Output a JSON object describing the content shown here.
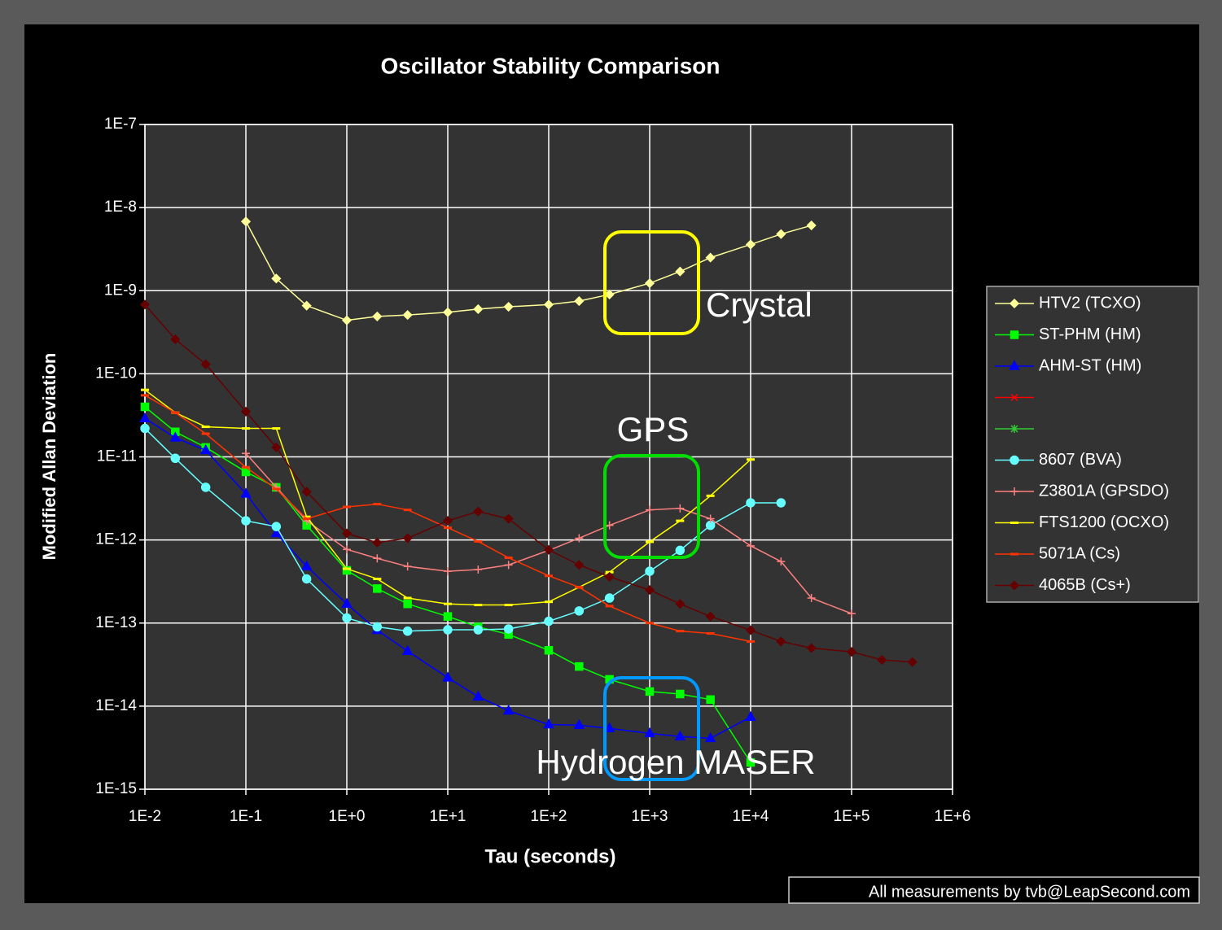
{
  "chart_data": {
    "type": "line",
    "title": "Oscillator Stability Comparison",
    "x_label": "Tau (seconds)",
    "y_label": "Modified Allan Deviation",
    "footer": "All measurements by tvb@LeapSecond.com",
    "annotations": [
      "Crystal",
      "GPS",
      "Hydrogen MASER"
    ],
    "xscale": "log",
    "yscale": "log",
    "grid": true,
    "legend": "right",
    "xlim": [
      0.01,
      1000000
    ],
    "ylim": [
      1e-15,
      1e-07
    ],
    "xticks": [
      {
        "value": 0.01,
        "label": "1E-2"
      },
      {
        "value": 0.1,
        "label": "1E-1"
      },
      {
        "value": 1,
        "label": "1E+0"
      },
      {
        "value": 10,
        "label": "1E+1"
      },
      {
        "value": 100,
        "label": "1E+2"
      },
      {
        "value": 1000,
        "label": "1E+3"
      },
      {
        "value": 10000,
        "label": "1E+4"
      },
      {
        "value": 100000,
        "label": "1E+5"
      },
      {
        "value": 1000000,
        "label": "1E+6"
      }
    ],
    "yticks": [
      {
        "value": 1e-15,
        "label": "1E-15"
      },
      {
        "value": 1e-14,
        "label": "1E-14"
      },
      {
        "value": 1e-13,
        "label": "1E-13"
      },
      {
        "value": 1e-12,
        "label": "1E-12"
      },
      {
        "value": 1e-11,
        "label": "1E-11"
      },
      {
        "value": 1e-10,
        "label": "1E-10"
      },
      {
        "value": 1e-09,
        "label": "1E-9"
      },
      {
        "value": 1e-08,
        "label": "1E-8"
      },
      {
        "value": 1e-07,
        "label": "1E-7"
      }
    ],
    "x": [
      0.01,
      0.02,
      0.04,
      0.1,
      0.2,
      0.4,
      1,
      2,
      4,
      10,
      20,
      40,
      100,
      200,
      400,
      1000,
      2000,
      4000,
      10000,
      20000,
      40000,
      100000,
      200000,
      400000
    ],
    "series": [
      {
        "name": "HTV2 (TCXO)",
        "color": "#ffff99",
        "marker": "diamond",
        "values": [
          null,
          null,
          null,
          6.8e-09,
          1.4e-09,
          6.6e-10,
          4.4e-10,
          4.9e-10,
          5.1e-10,
          5.5e-10,
          6e-10,
          6.4e-10,
          6.8e-10,
          7.5e-10,
          9e-10,
          1.23e-09,
          1.7e-09,
          2.5e-09,
          3.6e-09,
          4.8e-09,
          6.1e-09,
          null,
          null,
          null
        ]
      },
      {
        "name": "ST-PHM (HM)",
        "color": "#00ff00",
        "marker": "square",
        "values": [
          4e-11,
          2e-11,
          1.3e-11,
          6.6e-12,
          4.3e-12,
          1.5e-12,
          4.3e-13,
          2.6e-13,
          1.7e-13,
          1.2e-13,
          9e-14,
          7.3e-14,
          4.7e-14,
          3e-14,
          2.1e-14,
          1.5e-14,
          1.4e-14,
          1.2e-14,
          2.1e-15,
          null,
          null,
          null,
          null,
          null
        ]
      },
      {
        "name": "AHM-ST (HM)",
        "color": "#0000ff",
        "marker": "triangle",
        "values": [
          2.9e-11,
          1.7e-11,
          1.2e-11,
          3.6e-12,
          1.2e-12,
          4.8e-13,
          1.7e-13,
          8.2e-14,
          4.6e-14,
          2.2e-14,
          1.3e-14,
          8.8e-15,
          6e-15,
          5.9e-15,
          5.4e-15,
          4.7e-15,
          4.3e-15,
          4.1e-15,
          7.4e-15,
          null,
          null,
          null,
          null,
          null
        ]
      },
      {
        "name": null,
        "color": "#ff0000",
        "marker": "x",
        "values": [
          null,
          null,
          null,
          null,
          null,
          null,
          null,
          null,
          null,
          null,
          null,
          null,
          null,
          null,
          null,
          null,
          null,
          null,
          null,
          null,
          null,
          null,
          null,
          null
        ]
      },
      {
        "name": null,
        "color": "#33cc33",
        "marker": "star",
        "values": [
          null,
          null,
          null,
          null,
          null,
          null,
          null,
          null,
          null,
          null,
          null,
          null,
          null,
          null,
          null,
          null,
          null,
          null,
          null,
          null,
          null,
          null,
          null,
          null
        ]
      },
      {
        "name": "8607 (BVA)",
        "color": "#66ffff",
        "marker": "circle",
        "values": [
          2.2e-11,
          9.6e-12,
          4.3e-12,
          1.7e-12,
          1.45e-12,
          3.4e-13,
          1.15e-13,
          9e-14,
          8e-14,
          8.3e-14,
          8.3e-14,
          8.5e-14,
          1.05e-13,
          1.4e-13,
          2e-13,
          4.2e-13,
          7.5e-13,
          1.5e-12,
          2.8e-12,
          2.8e-12,
          null,
          null,
          null,
          null
        ]
      },
      {
        "name": "Z3801A (GPSDO)",
        "color": "#ff8080",
        "marker": "plus",
        "values": [
          null,
          null,
          null,
          1.1e-11,
          4.3e-12,
          1.7e-12,
          7.7e-13,
          6e-13,
          4.8e-13,
          4.2e-13,
          4.4e-13,
          5e-13,
          7.5e-13,
          1.05e-12,
          1.5e-12,
          2.3e-12,
          2.4e-12,
          1.8e-12,
          8.5e-13,
          5.5e-13,
          2e-13,
          1.3e-13,
          null,
          null
        ]
      },
      {
        "name": "FTS1200 (OCXO)",
        "color": "#ffff00",
        "marker": "dash",
        "values": [
          6.4e-11,
          3.4e-11,
          2.3e-11,
          2.2e-11,
          2.2e-11,
          1.9e-12,
          4.5e-13,
          3.4e-13,
          2e-13,
          1.7e-13,
          1.65e-13,
          1.65e-13,
          1.8e-13,
          2.7e-13,
          4.1e-13,
          9.5e-13,
          1.7e-12,
          3.4e-12,
          9.3e-12,
          null,
          null,
          null,
          null,
          null
        ]
      },
      {
        "name": "5071A (Cs)",
        "color": "#ff3300",
        "marker": "dash",
        "values": [
          5.5e-11,
          3.4e-11,
          1.9e-11,
          7.5e-12,
          4.1e-12,
          1.8e-12,
          2.5e-12,
          2.7e-12,
          2.3e-12,
          1.4e-12,
          9.6e-13,
          6.1e-13,
          3.7e-13,
          2.7e-13,
          1.6e-13,
          1e-13,
          8e-14,
          7.5e-14,
          6e-14,
          null,
          null,
          null,
          null,
          null
        ]
      },
      {
        "name": "4065B (Cs+)",
        "color": "#660000",
        "marker": "diamond",
        "values": [
          6.8e-10,
          2.6e-10,
          1.3e-10,
          3.5e-11,
          1.3e-11,
          3.8e-12,
          1.2e-12,
          9.3e-13,
          1.05e-12,
          1.7e-12,
          2.2e-12,
          1.8e-12,
          7.6e-13,
          5e-13,
          3.6e-13,
          2.5e-13,
          1.7e-13,
          1.2e-13,
          8.2e-14,
          6e-14,
          5e-14,
          4.5e-14,
          3.6e-14,
          3.4e-14
        ]
      }
    ]
  }
}
